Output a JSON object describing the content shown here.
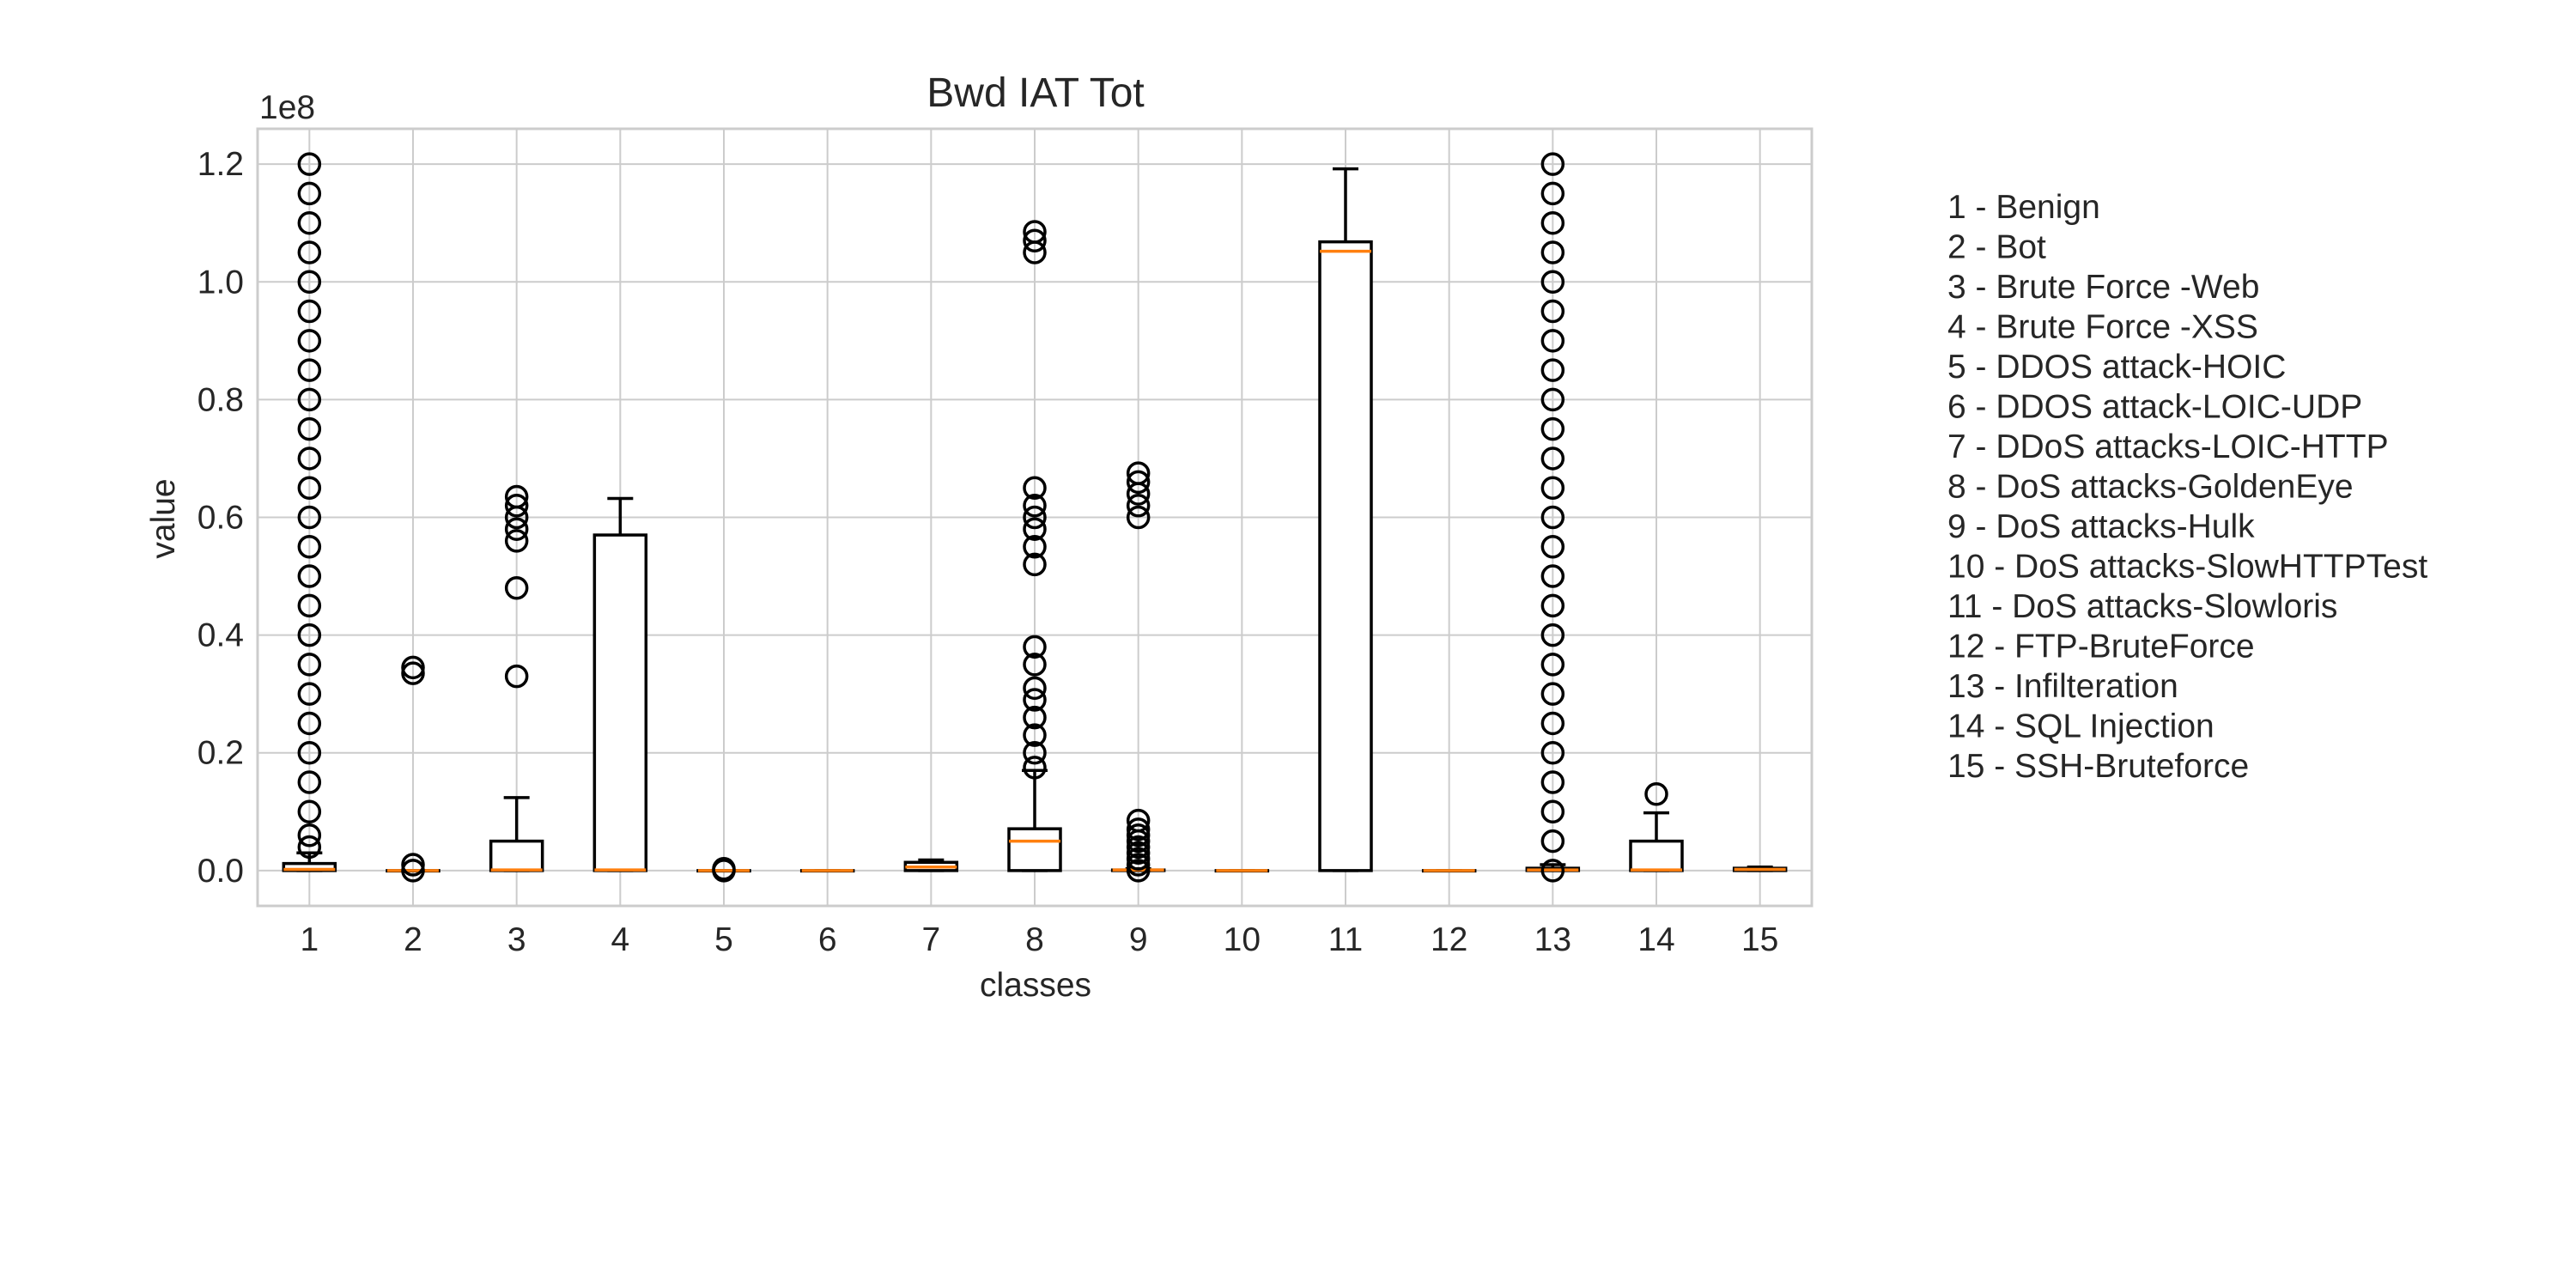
{
  "chart_data": {
    "type": "box",
    "title": "Bwd IAT Tot",
    "xlabel": "classes",
    "ylabel": "value",
    "offset_text": "1e8",
    "ylim": [
      -0.06,
      1.26
    ],
    "yticks": [
      0.0,
      0.2,
      0.4,
      0.6,
      0.8,
      1.0,
      1.2
    ],
    "ytick_labels": [
      "0.0",
      "0.2",
      "0.4",
      "0.6",
      "0.8",
      "1.0",
      "1.2"
    ],
    "categories": [
      "1",
      "2",
      "3",
      "4",
      "5",
      "6",
      "7",
      "8",
      "9",
      "10",
      "11",
      "12",
      "13",
      "14",
      "15"
    ],
    "grid": true,
    "legend_placement": "right",
    "legend": [
      "1 - Benign",
      "2 - Bot",
      "3 - Brute Force -Web",
      "4 - Brute Force -XSS",
      "5 - DDOS attack-HOIC",
      "6 - DDOS attack-LOIC-UDP",
      "7 - DDoS attacks-LOIC-HTTP",
      "8 - DoS attacks-GoldenEye",
      "9 - DoS attacks-Hulk",
      "10 - DoS attacks-SlowHTTPTest",
      "11 - DoS attacks-Slowloris",
      "12 - FTP-BruteForce",
      "13 - Infilteration",
      "14 - SQL Injection",
      "15 - SSH-Bruteforce"
    ],
    "boxes": [
      {
        "class": "1",
        "whislo": 0.0,
        "q1": 0.0,
        "med": 0.002,
        "q3": 0.012,
        "whishi": 0.03,
        "fliers": [
          0.04,
          0.06,
          0.1,
          0.15,
          0.2,
          0.25,
          0.3,
          0.35,
          0.4,
          0.45,
          0.5,
          0.55,
          0.6,
          0.65,
          0.7,
          0.75,
          0.8,
          0.85,
          0.9,
          0.95,
          1.0,
          1.05,
          1.1,
          1.15,
          1.2
        ]
      },
      {
        "class": "2",
        "whislo": 0.0,
        "q1": 0.0,
        "med": 0.0,
        "q3": 0.0,
        "whishi": 0.0,
        "fliers": [
          0.0,
          0.01,
          0.335,
          0.345
        ]
      },
      {
        "class": "3",
        "whislo": 0.0,
        "q1": 0.0,
        "med": 0.001,
        "q3": 0.05,
        "whishi": 0.124,
        "fliers": [
          0.33,
          0.48,
          0.56,
          0.58,
          0.6,
          0.62,
          0.635
        ]
      },
      {
        "class": "4",
        "whislo": 0.0,
        "q1": 0.0,
        "med": 0.001,
        "q3": 0.57,
        "whishi": 0.632,
        "fliers": []
      },
      {
        "class": "5",
        "whislo": 0.0,
        "q1": 0.0,
        "med": 0.0,
        "q3": 0.0,
        "whishi": 0.0,
        "fliers": [
          0.0,
          0.003
        ]
      },
      {
        "class": "6",
        "whislo": 0.0,
        "q1": 0.0,
        "med": 0.0,
        "q3": 0.0,
        "whishi": 0.0,
        "fliers": []
      },
      {
        "class": "7",
        "whislo": 0.0,
        "q1": 0.0,
        "med": 0.006,
        "q3": 0.014,
        "whishi": 0.018,
        "fliers": []
      },
      {
        "class": "8",
        "whislo": 0.0,
        "q1": 0.0,
        "med": 0.05,
        "q3": 0.071,
        "whishi": 0.17,
        "fliers": [
          0.175,
          0.2,
          0.23,
          0.26,
          0.29,
          0.31,
          0.35,
          0.38,
          0.52,
          0.55,
          0.58,
          0.6,
          0.62,
          0.65,
          1.05,
          1.07,
          1.085
        ]
      },
      {
        "class": "9",
        "whislo": 0.0,
        "q1": 0.0,
        "med": 0.001,
        "q3": 0.001,
        "whishi": 0.003,
        "fliers": [
          0.0,
          0.01,
          0.02,
          0.03,
          0.04,
          0.05,
          0.06,
          0.07,
          0.085,
          0.6,
          0.62,
          0.64,
          0.66,
          0.675
        ]
      },
      {
        "class": "10",
        "whislo": 0.0,
        "q1": 0.0,
        "med": 0.0,
        "q3": 0.0,
        "whishi": 0.0,
        "fliers": []
      },
      {
        "class": "11",
        "whislo": 0.0,
        "q1": 0.0,
        "med": 1.052,
        "q3": 1.068,
        "whishi": 1.192,
        "fliers": []
      },
      {
        "class": "12",
        "whislo": 0.0,
        "q1": 0.0,
        "med": 0.0,
        "q3": 0.0,
        "whishi": 0.0,
        "fliers": []
      },
      {
        "class": "13",
        "whislo": 0.0,
        "q1": 0.0,
        "med": 0.001,
        "q3": 0.004,
        "whishi": 0.01,
        "fliers": [
          0.0,
          0.05,
          0.1,
          0.15,
          0.2,
          0.25,
          0.3,
          0.35,
          0.4,
          0.45,
          0.5,
          0.55,
          0.6,
          0.65,
          0.7,
          0.75,
          0.8,
          0.85,
          0.9,
          0.95,
          1.0,
          1.05,
          1.1,
          1.15,
          1.2
        ]
      },
      {
        "class": "14",
        "whislo": 0.0,
        "q1": 0.0,
        "med": 0.001,
        "q3": 0.05,
        "whishi": 0.098,
        "fliers": [
          0.13
        ]
      },
      {
        "class": "15",
        "whislo": 0.0,
        "q1": 0.0,
        "med": 0.002,
        "q3": 0.004,
        "whishi": 0.006,
        "fliers": []
      }
    ]
  }
}
